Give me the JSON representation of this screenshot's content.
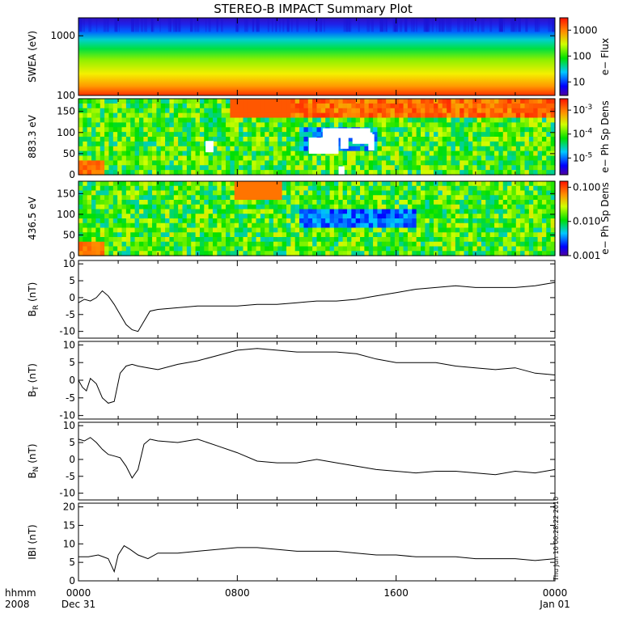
{
  "title": "STEREO-B IMPACT Summary Plot",
  "timestamp_stamp": "Thu Jun 10 00:28:22 2010",
  "x_axis": {
    "row1_left": "hhmm",
    "row2_left": "2008",
    "ticks": [
      {
        "hour": 0,
        "label": "0000",
        "sublabel": "Dec 31"
      },
      {
        "hour": 8,
        "label": "0800",
        "sublabel": ""
      },
      {
        "hour": 16,
        "label": "1600",
        "sublabel": ""
      },
      {
        "hour": 24,
        "label": "0000",
        "sublabel": "Jan 01"
      }
    ]
  },
  "chart_data": [
    {
      "type": "heatmap",
      "ylabel": "SWEA (eV)",
      "y_scale": "log",
      "ylim": [
        100,
        2000
      ],
      "ytick_labels": [
        "100",
        "1000"
      ],
      "colorbar": {
        "label": "e− Flux",
        "scale": "log",
        "range": [
          3,
          3000
        ],
        "tick_labels": [
          "10",
          "100",
          "1000"
        ]
      }
    },
    {
      "type": "heatmap",
      "ylabel": "883.3 eV",
      "ylim": [
        0,
        180
      ],
      "ytick_labels": [
        "0",
        "50",
        "100",
        "150"
      ],
      "colorbar": {
        "label": "e− Ph Sp Dens",
        "scale": "log",
        "range": [
          2e-06,
          0.003
        ],
        "tick_labels": [
          "10^-5",
          "10^-4",
          "10^-3"
        ]
      }
    },
    {
      "type": "heatmap",
      "ylabel": "436.5 eV",
      "ylim": [
        0,
        180
      ],
      "ytick_labels": [
        "0",
        "50",
        "100",
        "150"
      ],
      "colorbar": {
        "label": "e− Ph Sp Dens",
        "scale": "log",
        "range": [
          0.001,
          0.15
        ],
        "tick_labels": [
          "0.001",
          "0.010",
          "0.100"
        ]
      }
    },
    {
      "type": "line",
      "ylabel": "B_R (nT)",
      "ylim": [
        -12,
        11
      ],
      "ytick_labels": [
        "-10",
        "-5",
        "0",
        "5",
        "10"
      ],
      "x": [
        0,
        0.3,
        0.6,
        0.9,
        1.2,
        1.5,
        1.8,
        2.1,
        2.4,
        2.7,
        3.0,
        3.3,
        3.6,
        4,
        5,
        6,
        7,
        8,
        9,
        10,
        11,
        12,
        13,
        14,
        15,
        16,
        17,
        18,
        19,
        20,
        21,
        22,
        23,
        24
      ],
      "series": [
        {
          "values": [
            -1.5,
            -0.5,
            -1.0,
            0,
            2.0,
            0.5,
            -2.0,
            -5.0,
            -8.0,
            -9.5,
            -10.0,
            -7.0,
            -4.0,
            -3.5,
            -3.0,
            -2.5,
            -2.5,
            -2.5,
            -2.0,
            -2.0,
            -1.5,
            -1.0,
            -1.0,
            -0.5,
            0.5,
            1.5,
            2.5,
            3.0,
            3.5,
            3.0,
            3.0,
            3.0,
            3.5,
            4.5
          ]
        }
      ]
    },
    {
      "type": "line",
      "ylabel": "B_T (nT)",
      "ylim": [
        -11,
        11
      ],
      "ytick_labels": [
        "-10",
        "-5",
        "0",
        "5",
        "10"
      ],
      "x": [
        0,
        0.2,
        0.4,
        0.6,
        0.9,
        1.2,
        1.5,
        1.8,
        2.1,
        2.4,
        2.7,
        3.0,
        3.5,
        4,
        5,
        6,
        7,
        8,
        9,
        10,
        11,
        12,
        13,
        14,
        15,
        16,
        17,
        18,
        19,
        20,
        21,
        22,
        23,
        24
      ],
      "series": [
        {
          "values": [
            0,
            -2.0,
            -3.0,
            0.5,
            -1.0,
            -5.0,
            -6.5,
            -6.0,
            2.0,
            4.0,
            4.5,
            4.0,
            3.5,
            3.0,
            4.5,
            5.5,
            7.0,
            8.5,
            9.0,
            8.5,
            8.0,
            8.0,
            8.0,
            7.5,
            6.0,
            5.0,
            5.0,
            5.0,
            4.0,
            3.5,
            3.0,
            3.5,
            2.0,
            1.5
          ]
        }
      ]
    },
    {
      "type": "line",
      "ylabel": "B_N (nT)",
      "ylim": [
        -12,
        11
      ],
      "ytick_labels": [
        "-10",
        "-5",
        "0",
        "5",
        "10"
      ],
      "x": [
        0,
        0.3,
        0.6,
        0.9,
        1.2,
        1.5,
        1.8,
        2.1,
        2.4,
        2.7,
        3.0,
        3.3,
        3.6,
        4,
        5,
        6,
        7,
        8,
        9,
        10,
        11,
        12,
        13,
        14,
        15,
        16,
        17,
        18,
        19,
        20,
        21,
        22,
        23,
        24
      ],
      "series": [
        {
          "values": [
            6.0,
            5.5,
            6.5,
            5.0,
            3.0,
            1.5,
            1.0,
            0.5,
            -2.0,
            -5.5,
            -3.0,
            4.5,
            6.0,
            5.5,
            5.0,
            6.0,
            4.0,
            2.0,
            -0.5,
            -1.0,
            -1.0,
            0,
            -1.0,
            -2.0,
            -3.0,
            -3.5,
            -4.0,
            -3.5,
            -3.5,
            -4.0,
            -4.5,
            -3.5,
            -4.0,
            -3.0
          ]
        }
      ]
    },
    {
      "type": "line",
      "ylabel": "|B| (nT)",
      "ylim": [
        0,
        21
      ],
      "ytick_labels": [
        "0",
        "5",
        "10",
        "15",
        "20"
      ],
      "x": [
        0,
        0.5,
        1.0,
        1.5,
        1.8,
        2.0,
        2.3,
        2.6,
        3.0,
        3.5,
        4,
        5,
        6,
        7,
        8,
        9,
        10,
        11,
        12,
        13,
        14,
        15,
        16,
        17,
        18,
        19,
        20,
        21,
        22,
        23,
        24
      ],
      "series": [
        {
          "values": [
            6.5,
            6.5,
            7.0,
            6.0,
            2.5,
            7.0,
            9.5,
            8.5,
            7.0,
            6.0,
            7.5,
            7.5,
            8.0,
            8.5,
            9.0,
            9.0,
            8.5,
            8.0,
            8.0,
            8.0,
            7.5,
            7.0,
            7.0,
            6.5,
            6.5,
            6.5,
            6.0,
            6.0,
            6.0,
            5.5,
            6.0
          ]
        }
      ]
    }
  ]
}
